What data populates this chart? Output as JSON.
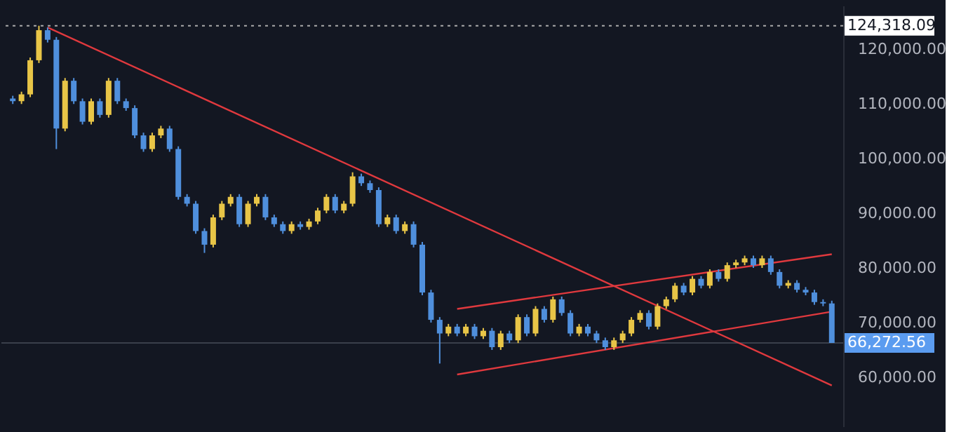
{
  "chart_data": {
    "type": "candlestick",
    "categories": [
      null,
      null,
      null,
      null,
      null,
      null,
      null,
      null,
      null,
      null,
      null,
      null,
      null,
      null,
      null,
      null,
      null,
      null,
      null,
      null,
      null,
      null,
      null,
      null,
      null,
      null,
      null,
      null,
      null,
      null,
      null,
      null,
      null,
      null,
      null,
      null,
      null,
      null,
      null,
      null,
      null,
      null,
      null,
      null,
      null,
      null,
      null,
      null,
      null,
      null,
      null,
      null,
      null,
      null,
      null,
      null,
      null,
      null,
      null,
      null,
      null,
      null,
      null,
      null,
      null,
      null,
      null,
      null,
      null,
      null,
      null,
      null,
      null,
      null,
      null,
      null,
      null,
      null,
      null,
      null,
      null,
      null,
      null,
      null,
      null,
      null,
      null,
      null,
      null,
      null,
      null,
      null,
      null,
      null,
      null
    ],
    "ohlc": [
      [
        111000,
        111500,
        110000,
        110500
      ],
      [
        110500,
        112250,
        110000,
        111750
      ],
      [
        111750,
        118500,
        111250,
        118000
      ],
      [
        118000,
        124318.09,
        117500,
        123500
      ],
      [
        123500,
        124000,
        121250,
        121750
      ],
      [
        121750,
        122250,
        101750,
        105500
      ],
      [
        105500,
        114750,
        105000,
        114250
      ],
      [
        114250,
        114750,
        110000,
        110500
      ],
      [
        110500,
        111000,
        106250,
        106750
      ],
      [
        106750,
        111000,
        106250,
        110500
      ],
      [
        110500,
        111000,
        107500,
        108000
      ],
      [
        108000,
        114750,
        107500,
        114250
      ],
      [
        114250,
        114750,
        110000,
        110500
      ],
      [
        110500,
        111000,
        108750,
        109250
      ],
      [
        109250,
        109750,
        103750,
        104250
      ],
      [
        104250,
        104750,
        101250,
        101750
      ],
      [
        101750,
        104750,
        101250,
        104250
      ],
      [
        104250,
        106000,
        103750,
        105500
      ],
      [
        105500,
        106000,
        101250,
        101750
      ],
      [
        101750,
        102250,
        92500,
        93000
      ],
      [
        93000,
        93500,
        91250,
        91750
      ],
      [
        91750,
        92250,
        86250,
        86750
      ],
      [
        86750,
        87250,
        82750,
        84250
      ],
      [
        84250,
        89750,
        83750,
        89250
      ],
      [
        89250,
        92250,
        88750,
        91750
      ],
      [
        91750,
        93500,
        91250,
        93000
      ],
      [
        93000,
        93500,
        87500,
        88000
      ],
      [
        88000,
        92250,
        87500,
        91750
      ],
      [
        91750,
        93500,
        91250,
        93000
      ],
      [
        93000,
        93500,
        88750,
        89250
      ],
      [
        89250,
        89750,
        87500,
        88000
      ],
      [
        88000,
        88500,
        86250,
        86750
      ],
      [
        86750,
        88500,
        86250,
        88000
      ],
      [
        88000,
        88500,
        87000,
        87500
      ],
      [
        87500,
        89000,
        87000,
        88500
      ],
      [
        88500,
        91000,
        88000,
        90500
      ],
      [
        90500,
        93500,
        90000,
        93000
      ],
      [
        93000,
        93500,
        90000,
        90500
      ],
      [
        90500,
        92250,
        90000,
        91750
      ],
      [
        91750,
        97500,
        91250,
        96750
      ],
      [
        96750,
        97250,
        95000,
        95500
      ],
      [
        95500,
        96000,
        93750,
        94250
      ],
      [
        94250,
        94750,
        87500,
        88000
      ],
      [
        88000,
        89750,
        87500,
        89250
      ],
      [
        89250,
        89750,
        86250,
        86750
      ],
      [
        86750,
        88500,
        86250,
        88000
      ],
      [
        88000,
        88500,
        83750,
        84250
      ],
      [
        84250,
        84750,
        75000,
        75500
      ],
      [
        75500,
        76000,
        70000,
        70500
      ],
      [
        70500,
        71000,
        62500,
        68000
      ],
      [
        68000,
        69750,
        67500,
        69250
      ],
      [
        69250,
        69750,
        67500,
        68000
      ],
      [
        68000,
        69750,
        67500,
        69250
      ],
      [
        69250,
        69750,
        67000,
        67500
      ],
      [
        67500,
        69000,
        67000,
        68500
      ],
      [
        68500,
        69000,
        65000,
        65500
      ],
      [
        65500,
        68500,
        65000,
        68000
      ],
      [
        68000,
        68500,
        66250,
        66750
      ],
      [
        66750,
        71500,
        66250,
        71000
      ],
      [
        71000,
        71500,
        67500,
        68000
      ],
      [
        68000,
        73000,
        67500,
        72500
      ],
      [
        72500,
        73000,
        70000,
        70500
      ],
      [
        70500,
        74750,
        70000,
        74250
      ],
      [
        74250,
        74750,
        71250,
        71750
      ],
      [
        71750,
        72250,
        67500,
        68000
      ],
      [
        68000,
        69750,
        67500,
        69250
      ],
      [
        69250,
        69750,
        67500,
        68000
      ],
      [
        68000,
        68500,
        66250,
        66750
      ],
      [
        66750,
        67250,
        65000,
        65500
      ],
      [
        65500,
        67250,
        65000,
        66750
      ],
      [
        66750,
        68500,
        66250,
        68000
      ],
      [
        68000,
        71000,
        67500,
        70500
      ],
      [
        70500,
        72250,
        70000,
        71750
      ],
      [
        71750,
        72250,
        68750,
        69250
      ],
      [
        69250,
        73500,
        68750,
        73000
      ],
      [
        73000,
        74750,
        72500,
        74250
      ],
      [
        74250,
        77250,
        73750,
        76750
      ],
      [
        76750,
        77250,
        75000,
        75500
      ],
      [
        75500,
        78500,
        75000,
        78000
      ],
      [
        78000,
        78500,
        76250,
        76750
      ],
      [
        76750,
        79750,
        76250,
        79250
      ],
      [
        79250,
        79750,
        77500,
        78000
      ],
      [
        78000,
        81000,
        77500,
        80500
      ],
      [
        80500,
        81500,
        80000,
        81000
      ],
      [
        81000,
        82250,
        80500,
        81750
      ],
      [
        81750,
        82250,
        80000,
        80500
      ],
      [
        80500,
        82250,
        80000,
        81750
      ],
      [
        81750,
        82250,
        78750,
        79250
      ],
      [
        79250,
        79750,
        76250,
        76750
      ],
      [
        76750,
        77750,
        76250,
        77250
      ],
      [
        77250,
        77750,
        75500,
        76000
      ],
      [
        76000,
        76500,
        75000,
        75500
      ],
      [
        75500,
        76000,
        73250,
        73750
      ],
      [
        73750,
        74250,
        73000,
        73500
      ],
      [
        73500,
        74000,
        66272.56,
        66272.56
      ]
    ],
    "colors": [
      "#4f8fdc",
      "#e8c547",
      "#e8c547",
      "#e8c547",
      "#4f8fdc",
      "#4f8fdc",
      "#e8c547",
      "#4f8fdc",
      "#4f8fdc",
      "#e8c547",
      "#4f8fdc",
      "#e8c547",
      "#4f8fdc",
      "#4f8fdc",
      "#4f8fdc",
      "#4f8fdc",
      "#e8c547",
      "#e8c547",
      "#4f8fdc",
      "#4f8fdc",
      "#4f8fdc",
      "#4f8fdc",
      "#4f8fdc",
      "#e8c547",
      "#e8c547",
      "#e8c547",
      "#4f8fdc",
      "#e8c547",
      "#e8c547",
      "#4f8fdc",
      "#4f8fdc",
      "#4f8fdc",
      "#e8c547",
      "#4f8fdc",
      "#e8c547",
      "#e8c547",
      "#e8c547",
      "#4f8fdc",
      "#e8c547",
      "#e8c547",
      "#4f8fdc",
      "#4f8fdc",
      "#4f8fdc",
      "#e8c547",
      "#4f8fdc",
      "#e8c547",
      "#4f8fdc",
      "#4f8fdc",
      "#4f8fdc",
      "#4f8fdc",
      "#e8c547",
      "#4f8fdc",
      "#e8c547",
      "#4f8fdc",
      "#e8c547",
      "#4f8fdc",
      "#e8c547",
      "#4f8fdc",
      "#e8c547",
      "#4f8fdc",
      "#e8c547",
      "#4f8fdc",
      "#e8c547",
      "#4f8fdc",
      "#4f8fdc",
      "#e8c547",
      "#4f8fdc",
      "#4f8fdc",
      "#4f8fdc",
      "#e8c547",
      "#e8c547",
      "#e8c547",
      "#e8c547",
      "#4f8fdc",
      "#e8c547",
      "#e8c547",
      "#e8c547",
      "#4f8fdc",
      "#e8c547",
      "#4f8fdc",
      "#e8c547",
      "#4f8fdc",
      "#e8c547",
      "#e8c547",
      "#e8c547",
      "#4f8fdc",
      "#e8c547",
      "#4f8fdc",
      "#4f8fdc",
      "#e8c547",
      "#4f8fdc",
      "#4f8fdc",
      "#4f8fdc",
      "#4f8fdc",
      "#4f8fdc"
    ],
    "series": [
      {
        "type": "line",
        "color": "#e0393e",
        "values": [
          null,
          null,
          null,
          null,
          124000,
          null,
          null,
          null,
          null,
          null,
          null,
          null,
          null,
          null,
          null,
          null,
          null,
          null,
          null,
          null,
          null,
          null,
          null,
          null,
          null,
          null,
          null,
          null,
          null,
          null,
          null,
          null,
          null,
          null,
          null,
          null,
          null,
          null,
          null,
          null,
          null,
          null,
          null,
          null,
          null,
          null,
          null,
          null,
          null,
          null,
          null,
          null,
          null,
          null,
          null,
          null,
          null,
          null,
          null,
          null,
          null,
          null,
          null,
          null,
          null,
          null,
          null,
          null,
          null,
          null,
          null,
          null,
          null,
          null,
          null,
          null,
          null,
          null,
          null,
          null,
          null,
          null,
          null,
          null,
          null,
          null,
          null,
          null,
          null,
          null,
          null,
          null,
          null,
          null,
          58500
        ]
      },
      {
        "type": "line",
        "color": "#e0393e",
        "values": [
          null,
          null,
          null,
          null,
          null,
          null,
          null,
          null,
          null,
          null,
          null,
          null,
          null,
          null,
          null,
          null,
          null,
          null,
          null,
          null,
          null,
          null,
          null,
          null,
          null,
          null,
          null,
          null,
          null,
          null,
          null,
          null,
          null,
          null,
          null,
          null,
          null,
          null,
          null,
          null,
          null,
          null,
          null,
          null,
          null,
          null,
          null,
          null,
          null,
          null,
          null,
          60500,
          null,
          null,
          null,
          null,
          null,
          null,
          null,
          null,
          null,
          null,
          null,
          null,
          null,
          null,
          null,
          null,
          null,
          null,
          null,
          null,
          null,
          null,
          null,
          null,
          null,
          null,
          null,
          null,
          null,
          null,
          null,
          null,
          null,
          null,
          null,
          null,
          null,
          null,
          null,
          null,
          null,
          null,
          72000
        ]
      },
      {
        "type": "line",
        "color": "#e0393e",
        "values": [
          null,
          null,
          null,
          null,
          null,
          null,
          null,
          null,
          null,
          null,
          null,
          null,
          null,
          null,
          null,
          null,
          null,
          null,
          null,
          null,
          null,
          null,
          null,
          null,
          null,
          null,
          null,
          null,
          null,
          null,
          null,
          null,
          null,
          null,
          null,
          null,
          null,
          null,
          null,
          null,
          null,
          null,
          null,
          null,
          null,
          null,
          null,
          null,
          null,
          null,
          null,
          72500,
          null,
          null,
          null,
          null,
          null,
          null,
          null,
          null,
          null,
          null,
          null,
          null,
          null,
          null,
          null,
          null,
          null,
          null,
          null,
          null,
          null,
          null,
          null,
          null,
          null,
          null,
          null,
          null,
          null,
          null,
          null,
          null,
          null,
          null,
          null,
          null,
          null,
          null,
          null,
          null,
          null,
          null,
          82500
        ]
      }
    ],
    "ylim": [
      51000,
      128000
    ],
    "yticks": [
      {
        "value": 60000,
        "label": "60,000.00"
      },
      {
        "value": 70000,
        "label": "70,000.00"
      },
      {
        "value": 80000,
        "label": "80,000.00"
      },
      {
        "value": 90000,
        "label": "90,000.00"
      },
      {
        "value": 100000,
        "label": "100,000.00"
      },
      {
        "value": 110000,
        "label": "110,000.00"
      },
      {
        "value": 120000,
        "label": "120,000.00"
      }
    ],
    "ref_lines": [
      {
        "axis": "y",
        "value": 124318.09,
        "label": "124,318.09",
        "color": "#aaaaaa",
        "line_style": "dotted"
      },
      {
        "axis": "y",
        "value": 66272.56,
        "label": "66,272.56",
        "color": "#3a3f4b",
        "line_style": "solid"
      }
    ],
    "tick_labels": "y",
    "grid": false
  }
}
